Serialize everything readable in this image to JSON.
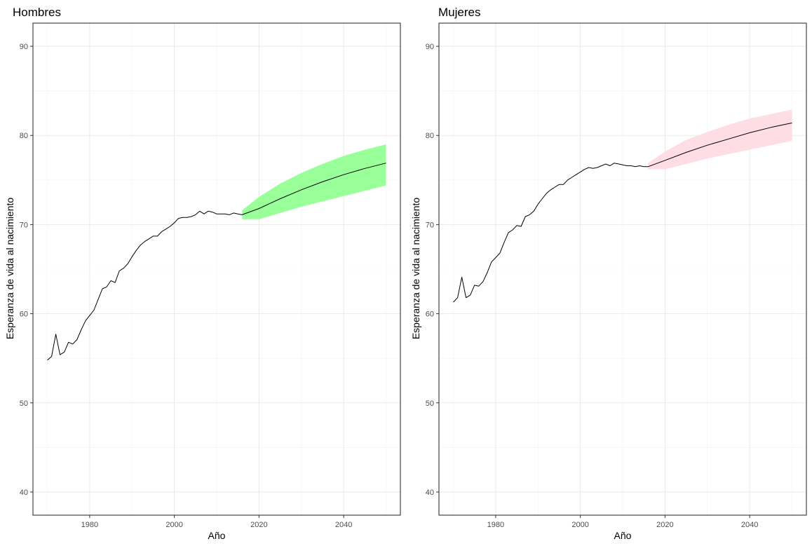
{
  "chart_data": [
    {
      "type": "line",
      "title": "Hombres",
      "xlabel": "Año",
      "ylabel": "Esperanza de vida al nacimiento",
      "xlim": [
        1966.6,
        2053.4
      ],
      "ylim": [
        37.4,
        92.6
      ],
      "x_ticks": [
        1980,
        2000,
        2020,
        2040
      ],
      "y_ticks": [
        40,
        50,
        60,
        70,
        80,
        90
      ],
      "grid": true,
      "band_color": "#99ff99",
      "line_color": "#000000",
      "series": [
        {
          "kind": "observed",
          "x": [
            1970,
            1971,
            1972,
            1973,
            1974,
            1975,
            1976,
            1977,
            1978,
            1979,
            1980,
            1981,
            1982,
            1983,
            1984,
            1985,
            1986,
            1987,
            1988,
            1989,
            1990,
            1991,
            1992,
            1993,
            1994,
            1995,
            1996,
            1997,
            1998,
            1999,
            2000,
            2001,
            2002,
            2003,
            2004,
            2005,
            2006,
            2007,
            2008,
            2009,
            2010,
            2011,
            2012,
            2013,
            2014,
            2015,
            2016
          ],
          "y": [
            54.8,
            55.2,
            57.7,
            55.4,
            55.7,
            56.8,
            56.6,
            57.1,
            58.2,
            59.2,
            59.8,
            60.4,
            61.6,
            62.8,
            63.0,
            63.7,
            63.5,
            64.8,
            65.1,
            65.6,
            66.4,
            67.1,
            67.7,
            68.1,
            68.4,
            68.7,
            68.7,
            69.2,
            69.5,
            69.8,
            70.2,
            70.7,
            70.8,
            70.8,
            70.9,
            71.1,
            71.5,
            71.2,
            71.5,
            71.4,
            71.2,
            71.2,
            71.2,
            71.1,
            71.3,
            71.2,
            71.1
          ]
        },
        {
          "kind": "projection",
          "x": [
            2016,
            2020,
            2025,
            2030,
            2035,
            2040,
            2045,
            2050
          ],
          "y": [
            71.1,
            71.8,
            72.9,
            73.9,
            74.8,
            75.6,
            76.3,
            76.9
          ],
          "lower": [
            70.6,
            70.6,
            71.3,
            72.0,
            72.6,
            73.2,
            73.8,
            74.4
          ],
          "upper": [
            71.6,
            73.1,
            74.6,
            75.8,
            76.8,
            77.7,
            78.4,
            79.0
          ]
        }
      ]
    },
    {
      "type": "line",
      "title": "Mujeres",
      "xlabel": "Año",
      "ylabel": "Esperanza de vida al nacimiento",
      "xlim": [
        1966.6,
        2053.4
      ],
      "ylim": [
        37.4,
        92.6
      ],
      "x_ticks": [
        1980,
        2000,
        2020,
        2040
      ],
      "y_ticks": [
        40,
        50,
        60,
        70,
        80,
        90
      ],
      "grid": true,
      "band_color": "#ffdde4",
      "line_color": "#000000",
      "series": [
        {
          "kind": "observed",
          "x": [
            1970,
            1971,
            1972,
            1973,
            1974,
            1975,
            1976,
            1977,
            1978,
            1979,
            1980,
            1981,
            1982,
            1983,
            1984,
            1985,
            1986,
            1987,
            1988,
            1989,
            1990,
            1991,
            1992,
            1993,
            1994,
            1995,
            1996,
            1997,
            1998,
            1999,
            2000,
            2001,
            2002,
            2003,
            2004,
            2005,
            2006,
            2007,
            2008,
            2009,
            2010,
            2011,
            2012,
            2013,
            2014,
            2015,
            2016
          ],
          "y": [
            61.3,
            61.8,
            64.1,
            61.8,
            62.1,
            63.2,
            63.1,
            63.6,
            64.6,
            65.8,
            66.3,
            66.8,
            68.0,
            69.1,
            69.4,
            69.9,
            69.8,
            70.9,
            71.1,
            71.5,
            72.3,
            72.9,
            73.5,
            73.9,
            74.2,
            74.5,
            74.5,
            75.0,
            75.3,
            75.6,
            75.9,
            76.2,
            76.4,
            76.3,
            76.4,
            76.6,
            76.8,
            76.6,
            76.9,
            76.8,
            76.7,
            76.6,
            76.6,
            76.5,
            76.6,
            76.5,
            76.5
          ]
        },
        {
          "kind": "projection",
          "x": [
            2016,
            2020,
            2025,
            2030,
            2035,
            2040,
            2045,
            2050
          ],
          "y": [
            76.5,
            77.2,
            78.1,
            78.9,
            79.6,
            80.3,
            80.9,
            81.4
          ],
          "lower": [
            76.2,
            76.2,
            76.8,
            77.4,
            77.9,
            78.4,
            78.9,
            79.4
          ],
          "upper": [
            76.9,
            78.2,
            79.5,
            80.4,
            81.2,
            81.9,
            82.4,
            82.9
          ]
        }
      ]
    }
  ]
}
